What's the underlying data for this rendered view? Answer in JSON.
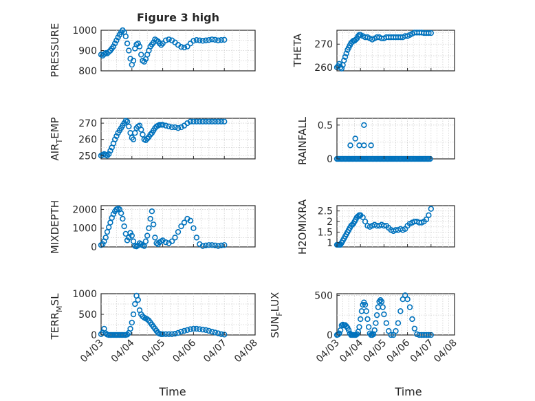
{
  "chart_data": [
    {
      "id": "pressure",
      "type": "scatter",
      "title": "Figure 3 high",
      "ylabel": "PRESSURE",
      "xlabel": "",
      "ylim": [
        800,
        1000
      ],
      "yticks": [
        "800",
        "900",
        "1000"
      ],
      "yticks_values": [
        800,
        900,
        1000
      ],
      "xticks": [],
      "grid": true,
      "x": [
        0,
        0.05,
        0.1,
        0.15,
        0.2,
        0.25,
        0.3,
        0.35,
        0.4,
        0.45,
        0.5,
        0.55,
        0.6,
        0.65,
        0.7,
        0.75,
        0.8,
        0.85,
        0.9,
        0.95,
        1.0,
        1.05,
        1.1,
        1.15,
        1.2,
        1.25,
        1.3,
        1.35,
        1.4,
        1.45,
        1.5,
        1.55,
        1.6,
        1.65,
        1.7,
        1.75,
        1.8,
        1.85,
        1.9,
        1.95,
        2.0,
        2.1,
        2.2,
        2.3,
        2.4,
        2.5,
        2.6,
        2.7,
        2.8,
        2.9,
        3.0,
        3.1,
        3.2,
        3.3,
        3.4,
        3.5,
        3.6,
        3.7,
        3.8,
        3.9,
        4.0
      ],
      "y": [
        880,
        875,
        882,
        888,
        886,
        893,
        900,
        910,
        920,
        935,
        950,
        965,
        978,
        990,
        1000,
        990,
        970,
        935,
        900,
        860,
        830,
        850,
        910,
        930,
        935,
        920,
        880,
        850,
        845,
        858,
        880,
        900,
        920,
        930,
        940,
        955,
        950,
        945,
        935,
        928,
        935,
        950,
        955,
        950,
        940,
        928,
        918,
        915,
        920,
        935,
        948,
        952,
        950,
        948,
        950,
        952,
        955,
        953,
        950,
        952,
        953
      ]
    },
    {
      "id": "theta",
      "type": "scatter",
      "title": "",
      "ylabel": "THETA",
      "xlabel": "",
      "ylim": [
        258.5,
        276
      ],
      "yticks": [
        "260",
        "270"
      ],
      "yticks_values": [
        260,
        270
      ],
      "xticks": [],
      "grid": true,
      "x": [
        0,
        0.05,
        0.1,
        0.15,
        0.2,
        0.25,
        0.3,
        0.35,
        0.4,
        0.45,
        0.5,
        0.55,
        0.6,
        0.65,
        0.7,
        0.75,
        0.8,
        0.85,
        0.9,
        0.95,
        1.0,
        1.1,
        1.2,
        1.3,
        1.4,
        1.5,
        1.6,
        1.7,
        1.8,
        1.9,
        2.0,
        2.1,
        2.2,
        2.3,
        2.4,
        2.5,
        2.6,
        2.7,
        2.8,
        2.9,
        3.0,
        3.1,
        3.2,
        3.3,
        3.4,
        3.5,
        3.6,
        3.7,
        3.8,
        3.9,
        4.0
      ],
      "y": [
        260,
        260.5,
        261.5,
        260,
        259.5,
        261,
        263,
        264.5,
        266,
        267.5,
        268.5,
        269.5,
        270.5,
        271,
        271.5,
        271.5,
        272,
        272.5,
        273.5,
        274,
        274,
        273.5,
        273,
        273,
        272.5,
        272,
        272.5,
        273,
        273,
        272.5,
        272.5,
        273,
        273,
        273,
        273,
        273,
        273,
        273,
        273,
        273.5,
        273.5,
        274,
        274.5,
        275,
        275,
        275,
        275,
        274.8,
        274.8,
        274.8,
        274.8
      ]
    },
    {
      "id": "air_temp",
      "type": "scatter",
      "title": "",
      "ylabel": "AIR",
      "ylabel_sub": "T",
      "ylabel_rest": "EMP",
      "xlabel": "",
      "ylim": [
        248,
        273
      ],
      "yticks": [
        "250",
        "260",
        "270"
      ],
      "yticks_values": [
        250,
        260,
        270
      ],
      "xticks": [],
      "grid": true,
      "x": [
        0,
        0.05,
        0.1,
        0.15,
        0.2,
        0.25,
        0.3,
        0.35,
        0.4,
        0.45,
        0.5,
        0.55,
        0.6,
        0.65,
        0.7,
        0.75,
        0.8,
        0.85,
        0.9,
        0.95,
        1.0,
        1.05,
        1.1,
        1.15,
        1.2,
        1.25,
        1.3,
        1.35,
        1.4,
        1.45,
        1.5,
        1.55,
        1.6,
        1.65,
        1.7,
        1.75,
        1.8,
        1.85,
        1.9,
        1.95,
        2.0,
        2.1,
        2.2,
        2.3,
        2.4,
        2.5,
        2.6,
        2.7,
        2.8,
        2.9,
        3.0,
        3.1,
        3.2,
        3.3,
        3.4,
        3.5,
        3.6,
        3.7,
        3.8,
        3.9,
        4.0
      ],
      "y": [
        250,
        250.5,
        251,
        250.5,
        250,
        251,
        253,
        255,
        257.5,
        260,
        262,
        264,
        265.5,
        267,
        268.5,
        270,
        271.5,
        271,
        268,
        264,
        261,
        260,
        264,
        267,
        268,
        268.5,
        266,
        263,
        260,
        259.5,
        260.5,
        261.5,
        263,
        264,
        265.5,
        267,
        268,
        268.5,
        269,
        269,
        269,
        268.5,
        268,
        267.5,
        267.5,
        267,
        267.5,
        268.5,
        270,
        271,
        271,
        271,
        271,
        271,
        271,
        271,
        271,
        271,
        271,
        271,
        271
      ]
    },
    {
      "id": "rainfall",
      "type": "scatter",
      "title": "",
      "ylabel": "RAINFALL",
      "xlabel": "",
      "ylim": [
        0,
        0.6
      ],
      "yticks": [
        "0",
        "0.5"
      ],
      "yticks_values": [
        0,
        0.5
      ],
      "xticks": [],
      "grid": true,
      "x": [
        0,
        0.06,
        0.12,
        0.18,
        0.24,
        0.3,
        0.36,
        0.42,
        0.48,
        0.54,
        0.6,
        0.66,
        0.72,
        0.78,
        0.84,
        0.9,
        0.96,
        1.02,
        1.08,
        1.14,
        1.2,
        1.26,
        1.32,
        1.38,
        1.44,
        1.5,
        1.56,
        1.62,
        1.68,
        1.74,
        1.8,
        1.86,
        1.92,
        1.98,
        2.04,
        2.1,
        2.16,
        2.22,
        2.28,
        2.34,
        2.4,
        2.46,
        2.52,
        2.58,
        2.64,
        2.7,
        2.76,
        2.82,
        2.88,
        2.94,
        3.0,
        3.06,
        3.12,
        3.18,
        3.24,
        3.3,
        3.36,
        3.42,
        3.48,
        3.54,
        3.6,
        3.66,
        3.72,
        3.78,
        3.84,
        3.9,
        3.96,
        0.57,
        0.78,
        0.95,
        1.15,
        1.15,
        1.45
      ],
      "y": [
        0,
        0,
        0,
        0,
        0,
        0,
        0,
        0,
        0,
        0,
        0,
        0,
        0,
        0,
        0,
        0,
        0,
        0,
        0,
        0,
        0,
        0,
        0,
        0,
        0,
        0,
        0,
        0,
        0,
        0,
        0,
        0,
        0,
        0,
        0,
        0,
        0,
        0,
        0,
        0,
        0,
        0,
        0,
        0,
        0,
        0,
        0,
        0,
        0,
        0,
        0,
        0,
        0,
        0,
        0,
        0,
        0,
        0,
        0,
        0,
        0,
        0,
        0,
        0,
        0,
        0,
        0,
        0.2,
        0.3,
        0.2,
        0.5,
        0.2,
        0.2
      ]
    },
    {
      "id": "mixdepth",
      "type": "scatter",
      "title": "",
      "ylabel": "MIXDEPTH",
      "xlabel": "",
      "ylim": [
        0,
        2200
      ],
      "yticks": [
        "0",
        "1000",
        "2000"
      ],
      "yticks_values": [
        0,
        1000,
        2000
      ],
      "xticks": [],
      "grid": true,
      "x": [
        0,
        0.05,
        0.1,
        0.15,
        0.2,
        0.25,
        0.3,
        0.35,
        0.4,
        0.45,
        0.5,
        0.55,
        0.6,
        0.65,
        0.7,
        0.75,
        0.8,
        0.85,
        0.9,
        0.95,
        1.0,
        1.05,
        1.1,
        1.15,
        1.2,
        1.25,
        1.3,
        1.35,
        1.4,
        1.45,
        1.5,
        1.55,
        1.6,
        1.65,
        1.7,
        1.75,
        1.8,
        1.85,
        1.9,
        1.95,
        2.0,
        2.1,
        2.2,
        2.3,
        2.4,
        2.5,
        2.6,
        2.7,
        2.8,
        2.9,
        3.0,
        3.1,
        3.2,
        3.3,
        3.4,
        3.5,
        3.6,
        3.7,
        3.8,
        3.9,
        4.0
      ],
      "y": [
        100,
        150,
        300,
        500,
        800,
        1050,
        1300,
        1550,
        1750,
        1900,
        2000,
        2050,
        2000,
        1800,
        1500,
        1100,
        700,
        350,
        500,
        750,
        600,
        300,
        50,
        30,
        80,
        200,
        150,
        80,
        50,
        300,
        600,
        1000,
        1500,
        1900,
        1200,
        500,
        200,
        150,
        250,
        300,
        350,
        250,
        200,
        300,
        500,
        800,
        1100,
        1300,
        1500,
        1400,
        1000,
        500,
        150,
        50,
        80,
        100,
        100,
        80,
        50,
        80,
        100
      ]
    },
    {
      "id": "h2omixra",
      "type": "scatter",
      "title": "",
      "ylabel": "H2OMIXRA",
      "xlabel": "",
      "ylim": [
        0.8,
        2.75
      ],
      "yticks": [
        "1",
        "1.5",
        "2",
        "2.5"
      ],
      "yticks_values": [
        1,
        1.5,
        2,
        2.5
      ],
      "xticks": [],
      "grid": true,
      "x": [
        0,
        0.05,
        0.1,
        0.15,
        0.2,
        0.25,
        0.3,
        0.35,
        0.4,
        0.45,
        0.5,
        0.55,
        0.6,
        0.65,
        0.7,
        0.75,
        0.8,
        0.85,
        0.9,
        0.95,
        1.0,
        1.1,
        1.2,
        1.3,
        1.4,
        1.5,
        1.6,
        1.7,
        1.8,
        1.9,
        2.0,
        2.1,
        2.2,
        2.3,
        2.4,
        2.5,
        2.6,
        2.7,
        2.8,
        2.9,
        3.0,
        3.1,
        3.2,
        3.3,
        3.4,
        3.5,
        3.6,
        3.7,
        3.8,
        3.9,
        4.0
      ],
      "y": [
        0.9,
        0.9,
        0.9,
        0.9,
        1.0,
        1.1,
        1.2,
        1.3,
        1.4,
        1.5,
        1.6,
        1.7,
        1.8,
        1.85,
        1.9,
        2.0,
        2.1,
        2.2,
        2.25,
        2.3,
        2.3,
        2.2,
        2.0,
        1.8,
        1.75,
        1.8,
        1.85,
        1.8,
        1.8,
        1.85,
        1.8,
        1.8,
        1.7,
        1.6,
        1.55,
        1.6,
        1.6,
        1.65,
        1.6,
        1.65,
        1.8,
        1.9,
        1.95,
        2.0,
        2.0,
        1.95,
        1.95,
        2.0,
        2.1,
        2.3,
        2.6
      ]
    },
    {
      "id": "terr_msl",
      "type": "scatter",
      "title": "",
      "ylabel": "TERR",
      "ylabel_sub": "M",
      "ylabel_rest": "SL",
      "xlabel": "Time",
      "ylim": [
        0,
        1000
      ],
      "yticks": [
        "0",
        "500",
        "1000"
      ],
      "yticks_values": [
        0,
        500,
        1000
      ],
      "xticks": [
        "04/03",
        "04/04",
        "04/05",
        "04/06",
        "04/07",
        "04/08"
      ],
      "grid": true,
      "x": [
        0,
        0.05,
        0.1,
        0.15,
        0.2,
        0.25,
        0.3,
        0.35,
        0.4,
        0.45,
        0.5,
        0.55,
        0.6,
        0.65,
        0.7,
        0.75,
        0.8,
        0.85,
        0.9,
        0.95,
        1.0,
        1.05,
        1.1,
        1.15,
        1.2,
        1.25,
        1.3,
        1.35,
        1.4,
        1.45,
        1.5,
        1.55,
        1.6,
        1.65,
        1.7,
        1.75,
        1.8,
        1.85,
        1.9,
        1.95,
        2.0,
        2.1,
        2.2,
        2.3,
        2.4,
        2.5,
        2.6,
        2.7,
        2.8,
        2.9,
        3.0,
        3.1,
        3.2,
        3.3,
        3.4,
        3.5,
        3.6,
        3.7,
        3.8,
        3.9,
        4.0
      ],
      "y": [
        20,
        60,
        150,
        40,
        10,
        0,
        0,
        0,
        0,
        0,
        0,
        0,
        0,
        0,
        0,
        0,
        0,
        10,
        50,
        150,
        300,
        500,
        750,
        950,
        850,
        600,
        500,
        450,
        420,
        400,
        380,
        350,
        300,
        250,
        200,
        150,
        100,
        50,
        30,
        20,
        20,
        20,
        20,
        20,
        30,
        50,
        80,
        100,
        120,
        140,
        150,
        150,
        140,
        130,
        120,
        100,
        80,
        60,
        40,
        20,
        10
      ]
    },
    {
      "id": "sun_flux",
      "type": "scatter",
      "title": "",
      "ylabel": "SUN",
      "ylabel_sub": "F",
      "ylabel_rest": "LUX",
      "xlabel": "Time",
      "ylim": [
        0,
        520
      ],
      "yticks": [
        "0",
        "500"
      ],
      "yticks_values": [
        0,
        500
      ],
      "xticks": [
        "04/03",
        "04/04",
        "04/05",
        "04/06",
        "04/07",
        "04/08"
      ],
      "grid": true,
      "x": [
        0,
        0.05,
        0.1,
        0.15,
        0.2,
        0.25,
        0.3,
        0.35,
        0.4,
        0.45,
        0.5,
        0.55,
        0.6,
        0.65,
        0.7,
        0.75,
        0.8,
        0.85,
        0.9,
        0.95,
        1.0,
        1.05,
        1.1,
        1.15,
        1.2,
        1.25,
        1.3,
        1.35,
        1.4,
        1.45,
        1.5,
        1.55,
        1.6,
        1.65,
        1.7,
        1.75,
        1.8,
        1.85,
        1.9,
        1.95,
        2.0,
        2.1,
        2.2,
        2.3,
        2.4,
        2.5,
        2.6,
        2.7,
        2.8,
        2.9,
        3.0,
        3.1,
        3.2,
        3.3,
        3.4,
        3.5,
        3.6,
        3.7,
        3.8,
        3.9,
        4.0
      ],
      "y": [
        0,
        5,
        20,
        60,
        120,
        130,
        120,
        125,
        110,
        90,
        60,
        20,
        0,
        0,
        0,
        0,
        0,
        10,
        40,
        100,
        200,
        300,
        380,
        410,
        380,
        300,
        200,
        100,
        20,
        0,
        0,
        10,
        60,
        150,
        250,
        350,
        420,
        440,
        420,
        350,
        260,
        150,
        50,
        0,
        0,
        50,
        150,
        300,
        450,
        500,
        450,
        350,
        200,
        80,
        10,
        0,
        0,
        0,
        0,
        0,
        0
      ]
    }
  ]
}
